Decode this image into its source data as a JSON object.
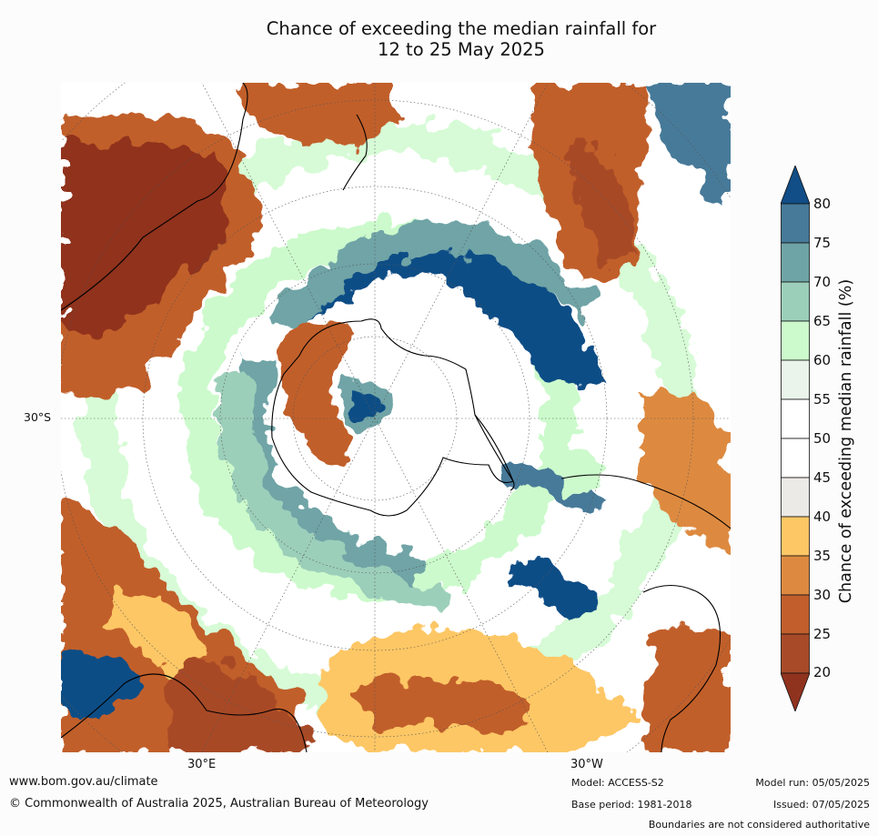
{
  "title": {
    "line1": "Chance of exceeding the median rainfall for",
    "line2": "12 to 25 May 2025"
  },
  "map": {
    "projection": "south-polar stereographic",
    "lat_labels": [
      "30°S"
    ],
    "lon_labels": [
      "30°E",
      "30°W"
    ]
  },
  "colorbar": {
    "label": "Chance of exceeding median rainfall (%)",
    "ticks": [
      "80",
      "75",
      "70",
      "65",
      "60",
      "55",
      "50",
      "45",
      "40",
      "35",
      "30",
      "25",
      "20"
    ],
    "colors": {
      "above_80": "#114d86",
      "75_80": "#477a99",
      "70_75": "#6fa4a6",
      "65_70": "#9ccfba",
      "60_65": "#ccfacc",
      "55_60": "#eaf4ea",
      "50_55": "#ffffff",
      "45_50": "#ffffff",
      "40_45": "#ebeae6",
      "35_40": "#fdc765",
      "30_35": "#dd8a40",
      "25_30": "#c15e2c",
      "20_25": "#a84a28",
      "below_20": "#90331e"
    }
  },
  "footer": {
    "website": "www.bom.gov.au/climate",
    "copyright": "© Commonwealth of Australia 2025, Australian Bureau of Meteorology",
    "model": "Model: ACCESS-S2",
    "base_period": "Base period: 1981-2018",
    "model_run": "Model run: 05/05/2025",
    "issued": "Issued: 07/05/2025",
    "disclaimer": "Boundaries are not considered authoritative"
  }
}
